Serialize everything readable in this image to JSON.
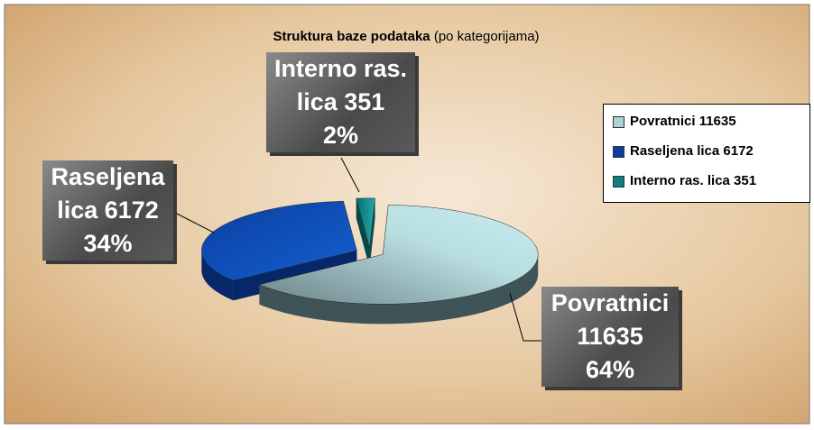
{
  "chart_data": {
    "type": "pie3d",
    "title": "Struktura baze podataka",
    "subtitle": "(po kategorijama)",
    "categories": [
      "Povratnici 11635",
      "Raseljena lica 6172",
      "Interno ras. lica 351"
    ],
    "values": [
      11635,
      6172,
      351
    ],
    "percent_labels": [
      "64%",
      "34%",
      "2%"
    ],
    "colors": [
      "#a9d3d6",
      "#0a3fa0",
      "#0f7f80"
    ],
    "legend": "right"
  }
}
